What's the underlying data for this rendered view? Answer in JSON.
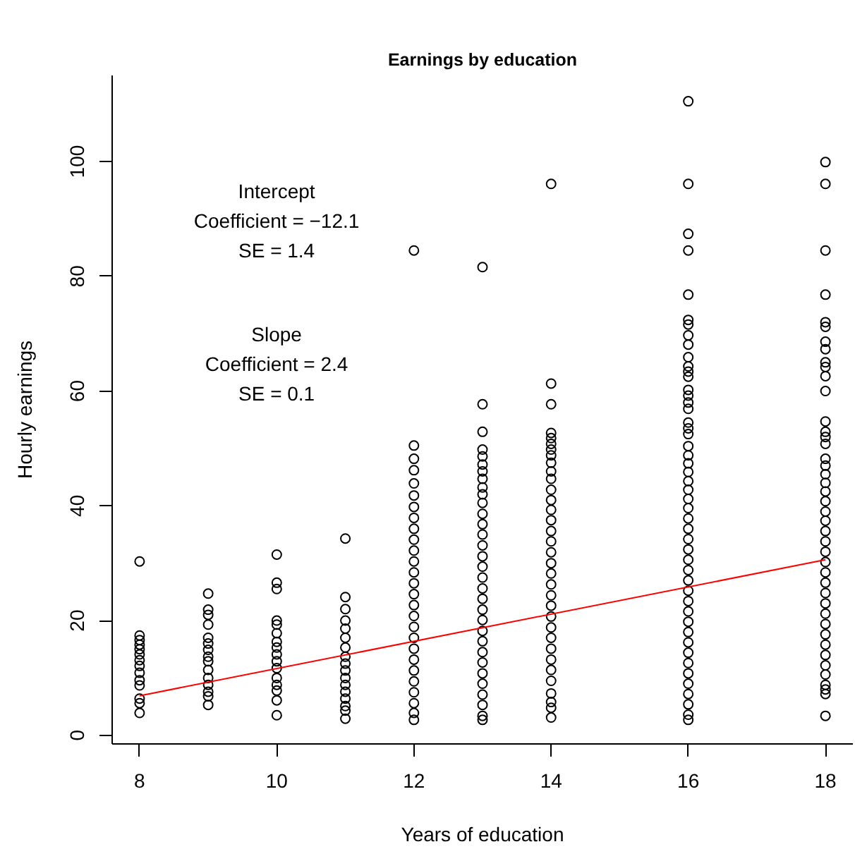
{
  "chart_data": {
    "type": "scatter",
    "title": "Earnings by education",
    "xlabel": "Years of education",
    "ylabel": "Hourly earnings",
    "xlim": [
      7.6,
      18.4
    ],
    "xticks": [
      8,
      10,
      12,
      14,
      16,
      18
    ],
    "ylim": [
      -1.5,
      115
    ],
    "yticks": [
      0,
      20,
      40,
      60,
      80,
      100
    ],
    "marker": "circle",
    "annotations": [
      "Intercept\nCoefficient = −12.1\nSE = 1.4",
      "Slope\nCoefficient = 2.4\nSE = 0.1"
    ],
    "series": [
      {
        "type": "scatter",
        "color": "#000000",
        "x": [
          8,
          8,
          8,
          8,
          8,
          8,
          8,
          8,
          8,
          8,
          8,
          8,
          8,
          8,
          9,
          9,
          9,
          9,
          9,
          9,
          9,
          9,
          9,
          9,
          9,
          9,
          9,
          9,
          9,
          10,
          10,
          10,
          10,
          10,
          10,
          10,
          10,
          10,
          10,
          10,
          10,
          10,
          10,
          10,
          10,
          11,
          11,
          11,
          11,
          11,
          11,
          11,
          11,
          11,
          11,
          11,
          11,
          11,
          11,
          11,
          11,
          11,
          12,
          12,
          12,
          12,
          12,
          12,
          12,
          12,
          12,
          12,
          12,
          12,
          12,
          12,
          12,
          12,
          12,
          12,
          12,
          12,
          12,
          12,
          12,
          12,
          12,
          12,
          12,
          13,
          13,
          13,
          13,
          13,
          13,
          13,
          13,
          13,
          13,
          13,
          13,
          13,
          13,
          13,
          13,
          13,
          13,
          13,
          13,
          13,
          13,
          13,
          13,
          13,
          13,
          13,
          13,
          13,
          13,
          13,
          13,
          14,
          14,
          14,
          14,
          14,
          14,
          14,
          14,
          14,
          14,
          14,
          14,
          14,
          14,
          14,
          14,
          14,
          14,
          14,
          14,
          14,
          14,
          14,
          14,
          14,
          14,
          14,
          14,
          14,
          14,
          14,
          14,
          14,
          14,
          16,
          16,
          16,
          16,
          16,
          16,
          16,
          16,
          16,
          16,
          16,
          16,
          16,
          16,
          16,
          16,
          16,
          16,
          16,
          16,
          16,
          16,
          16,
          16,
          16,
          16,
          16,
          16,
          16,
          16,
          16,
          16,
          16,
          16,
          16,
          16,
          16,
          16,
          16,
          16,
          16,
          16,
          16,
          16,
          16,
          16,
          16,
          16,
          16,
          18,
          18,
          18,
          18,
          18,
          18,
          18,
          18,
          18,
          18,
          18,
          18,
          18,
          18,
          18,
          18,
          18,
          18,
          18,
          18,
          18,
          18,
          18,
          18,
          18,
          18,
          18,
          18,
          18,
          18,
          18,
          18,
          18,
          18,
          18,
          18,
          18,
          18,
          18,
          18,
          18,
          18,
          18
        ],
        "values": [
          30.3,
          17.4,
          16.6,
          15.8,
          15.0,
          14.1,
          13.1,
          12.1,
          10.9,
          9.6,
          8.7,
          6.4,
          5.6,
          3.9,
          24.7,
          21.9,
          21.0,
          19.3,
          17.0,
          16.0,
          14.9,
          13.7,
          12.9,
          11.4,
          10.0,
          8.8,
          7.6,
          6.8,
          5.3,
          31.5,
          26.6,
          25.5,
          20.0,
          19.3,
          17.8,
          16.3,
          15.3,
          14.1,
          12.9,
          11.7,
          10.0,
          8.8,
          7.8,
          6.1,
          3.5,
          34.3,
          24.1,
          22.0,
          20.0,
          18.6,
          17.0,
          15.3,
          13.7,
          12.5,
          11.3,
          10.0,
          8.8,
          7.6,
          6.4,
          5.1,
          4.3,
          2.9,
          84.5,
          50.5,
          48.2,
          46.2,
          43.9,
          41.8,
          39.8,
          37.9,
          36.0,
          34.1,
          32.2,
          30.3,
          28.4,
          26.5,
          24.6,
          22.7,
          20.8,
          18.9,
          17.0,
          15.1,
          13.2,
          11.3,
          9.4,
          7.5,
          5.6,
          3.9,
          2.7,
          81.6,
          57.7,
          52.9,
          49.8,
          48.6,
          47.2,
          46.0,
          44.7,
          43.2,
          42.0,
          40.5,
          38.6,
          36.8,
          35.0,
          33.1,
          31.2,
          29.4,
          27.5,
          25.6,
          23.8,
          21.9,
          20.1,
          18.2,
          16.4,
          14.5,
          12.7,
          10.8,
          9.0,
          7.1,
          5.3,
          3.4,
          2.7,
          96.1,
          61.3,
          57.7,
          52.7,
          51.8,
          50.8,
          49.8,
          48.8,
          47.5,
          46.0,
          44.7,
          42.8,
          41.0,
          39.3,
          37.5,
          35.6,
          33.8,
          31.9,
          30.0,
          28.2,
          26.3,
          24.4,
          22.6,
          20.7,
          18.8,
          17.0,
          15.1,
          13.2,
          11.4,
          9.5,
          7.3,
          5.8,
          4.8,
          3.1,
          110.5,
          96.1,
          87.4,
          84.5,
          76.8,
          72.4,
          71.6,
          69.7,
          68.1,
          65.9,
          64.3,
          63.4,
          62.5,
          60.2,
          59.2,
          58.0,
          56.9,
          54.5,
          53.5,
          52.5,
          50.4,
          48.8,
          47.4,
          45.9,
          44.3,
          42.8,
          41.2,
          39.6,
          37.8,
          36.0,
          34.2,
          32.4,
          30.6,
          28.8,
          27.0,
          25.2,
          23.4,
          21.6,
          19.8,
          18.0,
          16.2,
          14.4,
          12.6,
          10.8,
          9.0,
          7.2,
          5.4,
          3.6,
          2.7,
          99.9,
          96.1,
          84.5,
          76.8,
          72.0,
          71.2,
          68.6,
          67.3,
          65.0,
          64.2,
          62.6,
          60.0,
          54.7,
          52.9,
          52.0,
          50.8,
          48.2,
          47.0,
          45.5,
          44.0,
          42.5,
          40.8,
          39.0,
          37.4,
          35.6,
          33.8,
          32.0,
          30.2,
          28.4,
          26.6,
          24.8,
          23.0,
          21.2,
          19.4,
          17.6,
          15.8,
          14.0,
          12.2,
          10.6,
          8.8,
          8.0,
          7.2,
          3.4
        ]
      },
      {
        "type": "line",
        "color": "#ff0000",
        "marker": "none",
        "x": [
          8,
          18
        ],
        "values": [
          6.9,
          30.6
        ]
      }
    ]
  }
}
